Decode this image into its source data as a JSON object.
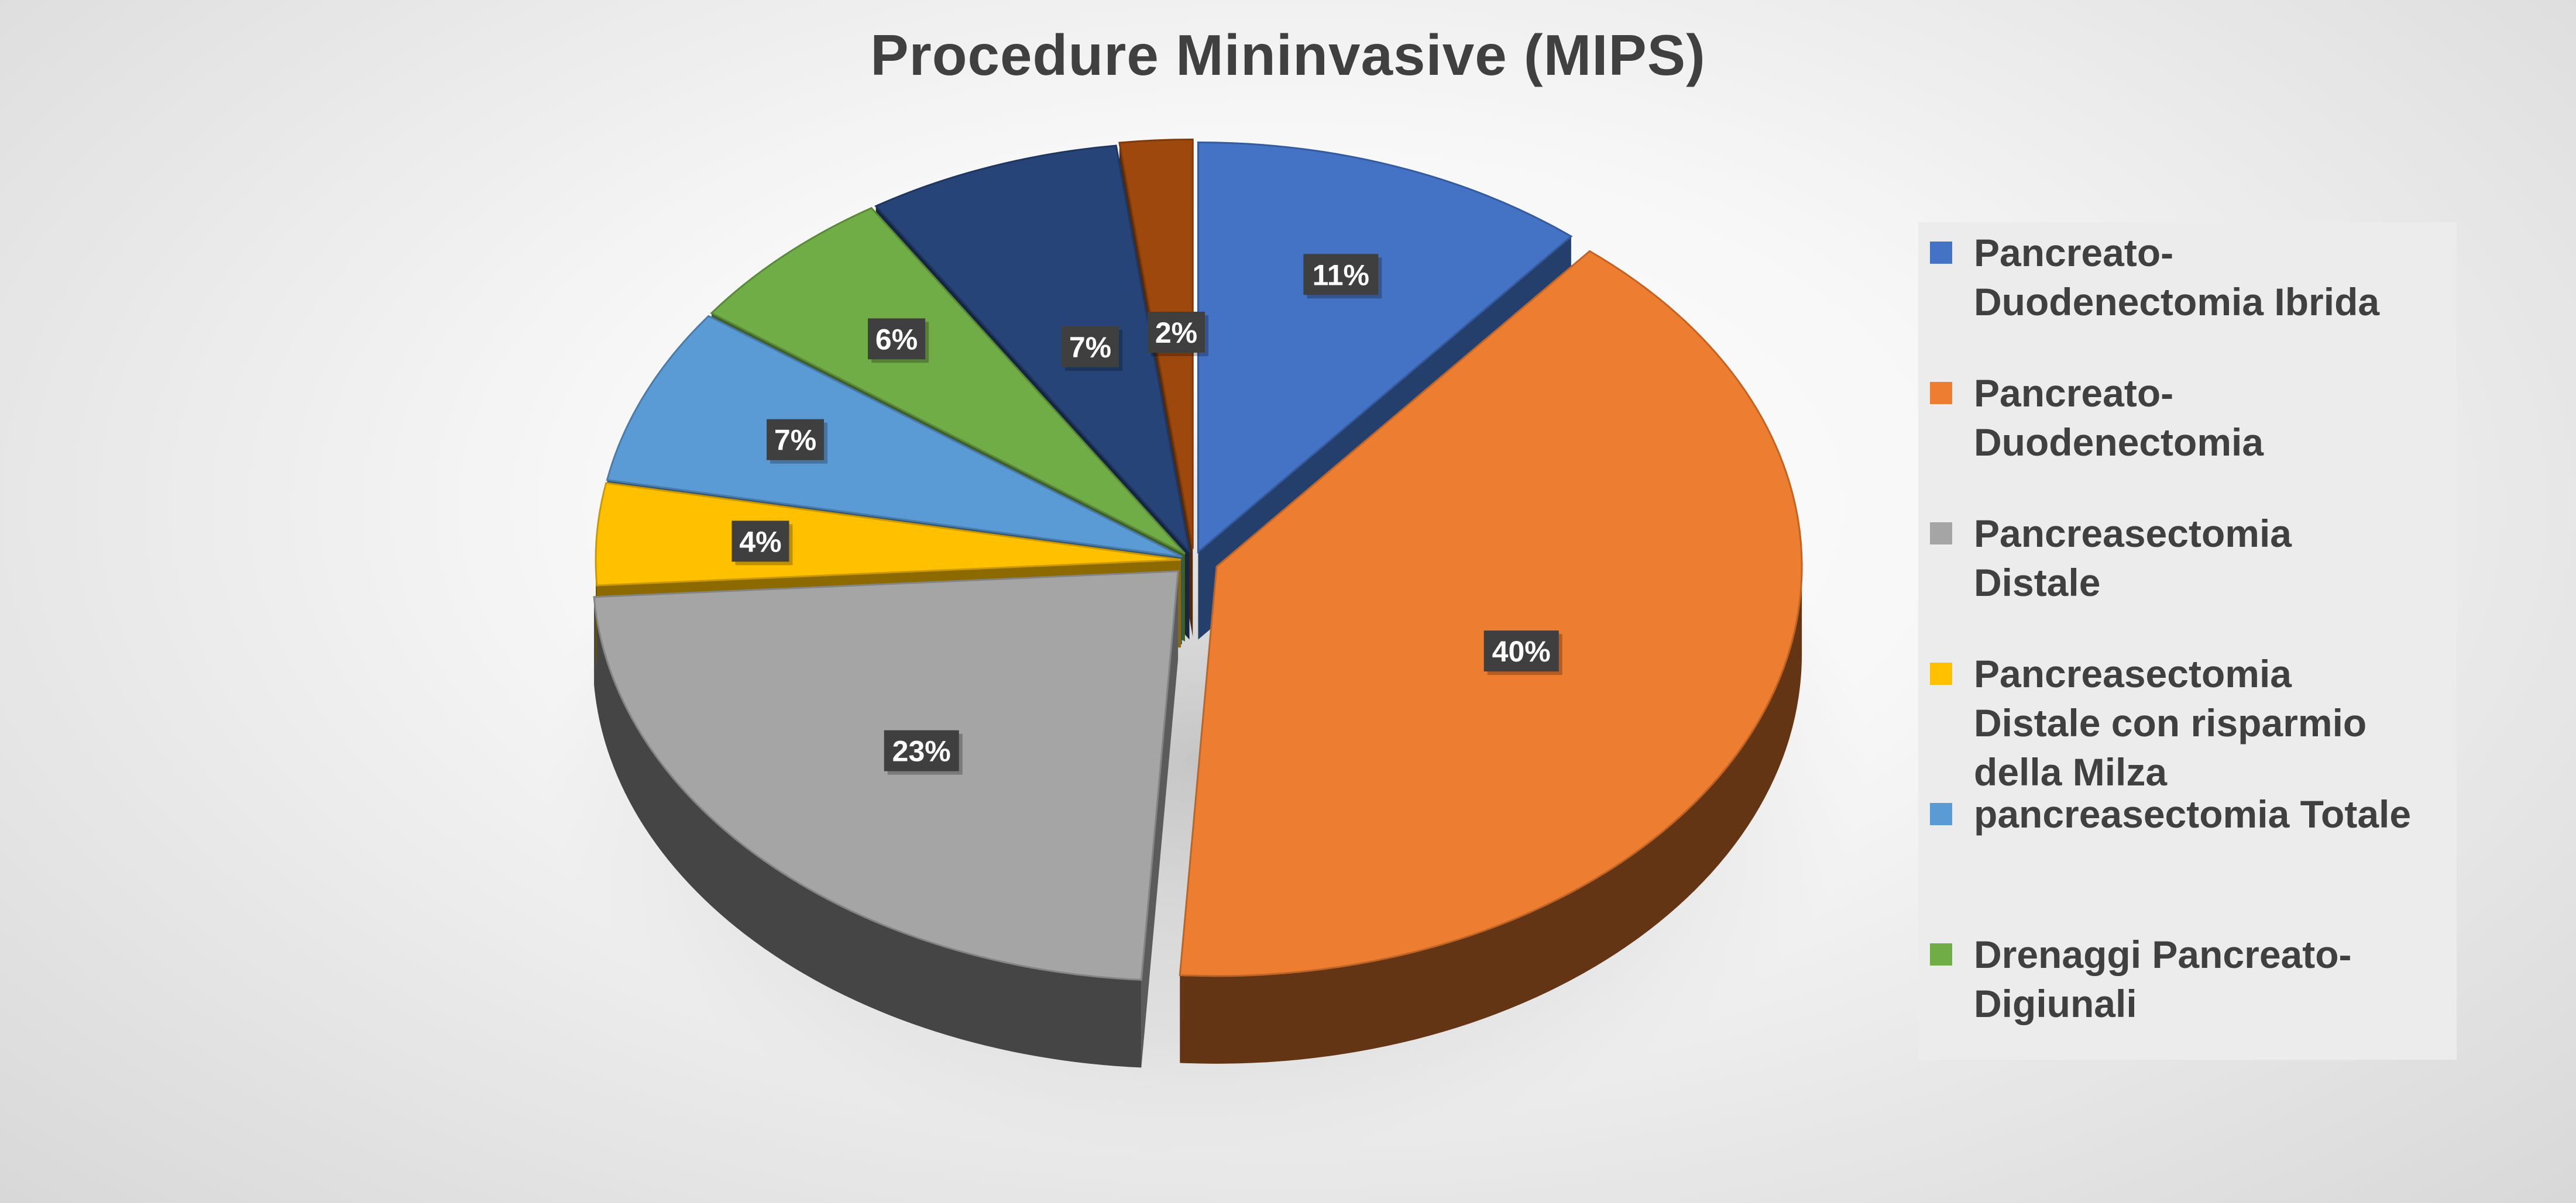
{
  "chart_data": {
    "type": "pie",
    "title": "Procedure Mininvasive (MIPS)",
    "categories": [
      "Pancreato-Duodenectomia Ibrida",
      "Pancreato-Duodenectomia",
      "Pancreasectomia Distale",
      "Pancreasectomia Distale con risparmio della Milza",
      "pancreasectomia Totale",
      "Drenaggi Pancreato-Digiunali",
      "",
      ""
    ],
    "values": [
      11,
      40,
      23,
      4,
      7,
      6,
      7,
      2
    ],
    "labels": [
      "11%",
      "40%",
      "23%",
      "4%",
      "7%",
      "6%",
      "7%",
      "2%"
    ],
    "colors": [
      "#4472C4",
      "#ED7D31",
      "#A5A5A5",
      "#FFC000",
      "#5B9BD5",
      "#70AD47",
      "#264478",
      "#9E480E"
    ],
    "legend_position": "right",
    "legend": [
      {
        "lines": [
          "Pancreato-",
          "Duodenectomia Ibrida"
        ],
        "color": "#4472C4"
      },
      {
        "lines": [
          "Pancreato-",
          "Duodenectomia"
        ],
        "color": "#ED7D31"
      },
      {
        "lines": [
          "Pancreasectomia",
          "Distale"
        ],
        "color": "#A5A5A5"
      },
      {
        "lines": [
          "Pancreasectomia",
          "Distale con risparmio",
          "della Milza"
        ],
        "color": "#FFC000"
      },
      {
        "lines": [
          "pancreasectomia Totale"
        ],
        "color": "#5B9BD5"
      },
      {
        "lines": [
          "Drenaggi Pancreato-",
          "Digiunali"
        ],
        "color": "#70AD47"
      }
    ]
  }
}
